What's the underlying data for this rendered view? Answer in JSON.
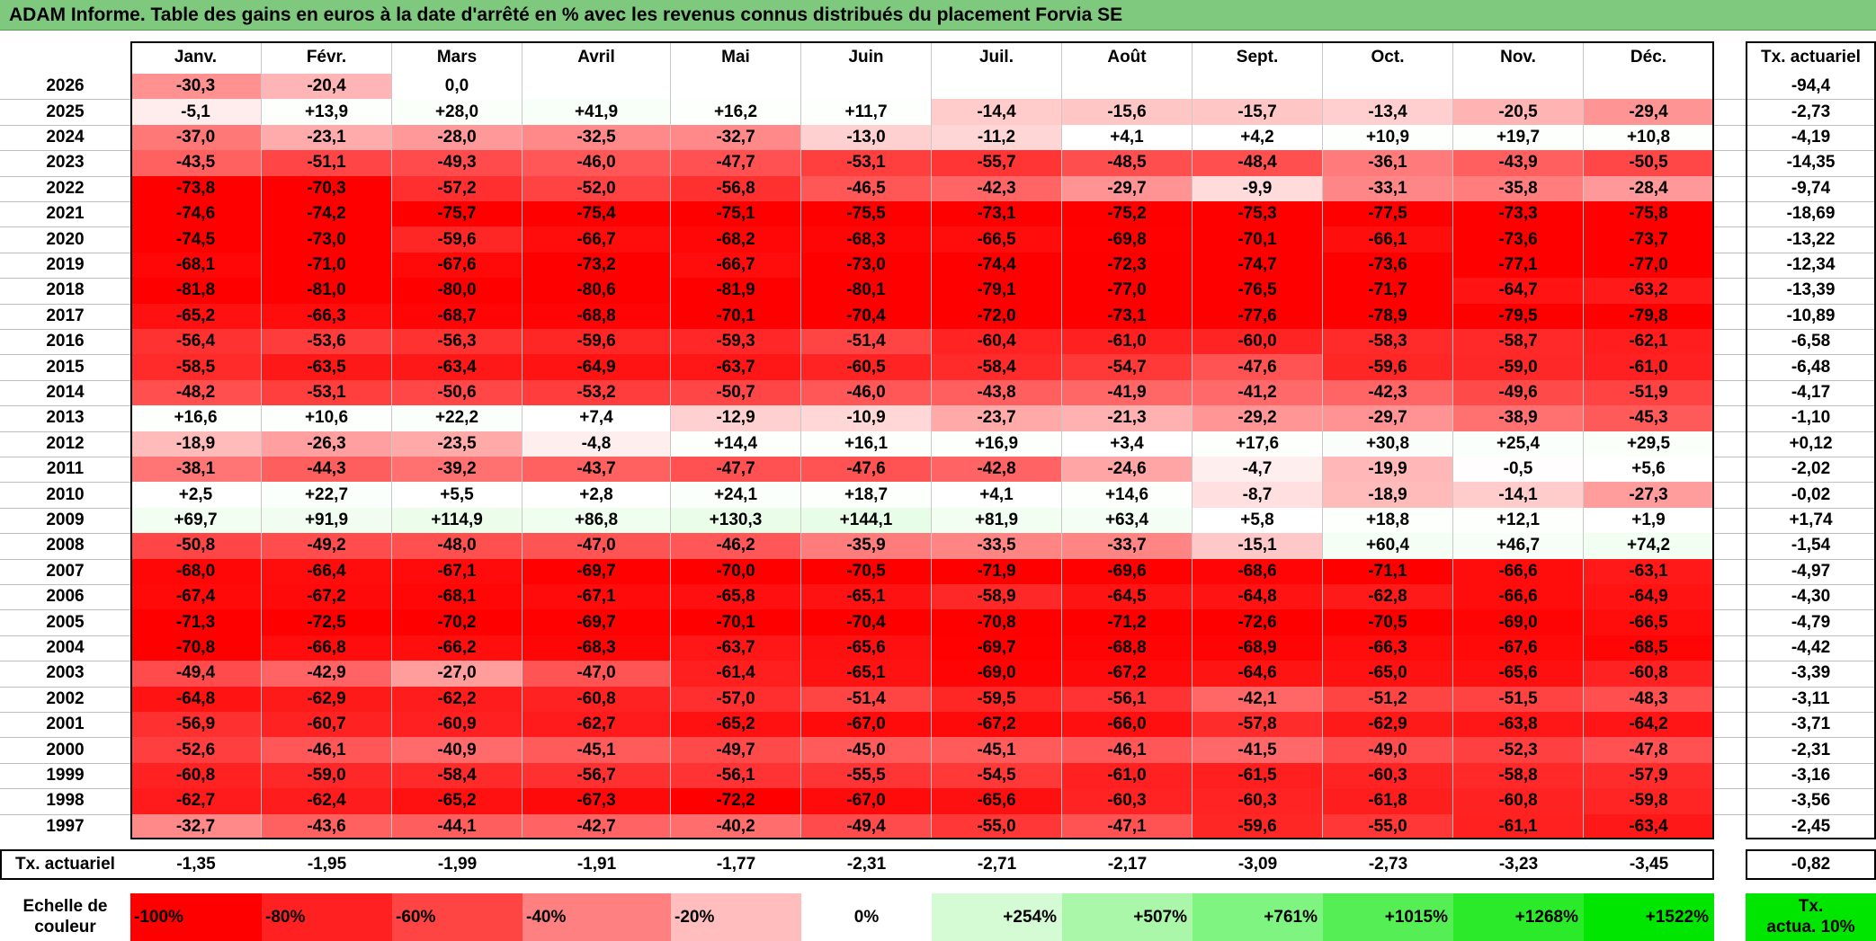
{
  "title": "ADAM Informe. Table des gains en euros à la date d'arrêté en % avec les revenus connus distribués du placement Forvia SE",
  "chart_data": {
    "type": "table",
    "columns": [
      "Janv.",
      "Févr.",
      "Mars",
      "Avril",
      "Mai",
      "Juin",
      "Juil.",
      "Août",
      "Sept.",
      "Oct.",
      "Nov.",
      "Déc."
    ],
    "rate_header": "Tx. actuariel",
    "rows": [
      {
        "year": "2026",
        "values": [
          "-30,3",
          "-20,4",
          "0,0",
          "",
          "",
          "",
          "",
          "",
          "",
          "",
          "",
          ""
        ],
        "rate": "-94,4"
      },
      {
        "year": "2025",
        "values": [
          "-5,1",
          "+13,9",
          "+28,0",
          "+41,9",
          "+16,2",
          "+11,7",
          "-14,4",
          "-15,6",
          "-15,7",
          "-13,4",
          "-20,5",
          "-29,4"
        ],
        "rate": "-2,73"
      },
      {
        "year": "2024",
        "values": [
          "-37,0",
          "-23,1",
          "-28,0",
          "-32,5",
          "-32,7",
          "-13,0",
          "-11,2",
          "+4,1",
          "+4,2",
          "+10,9",
          "+19,7",
          "+10,8"
        ],
        "rate": "-4,19"
      },
      {
        "year": "2023",
        "values": [
          "-43,5",
          "-51,1",
          "-49,3",
          "-46,0",
          "-47,7",
          "-53,1",
          "-55,7",
          "-48,5",
          "-48,4",
          "-36,1",
          "-43,9",
          "-50,5"
        ],
        "rate": "-14,35"
      },
      {
        "year": "2022",
        "values": [
          "-73,8",
          "-70,3",
          "-57,2",
          "-52,0",
          "-56,8",
          "-46,5",
          "-42,3",
          "-29,7",
          "-9,9",
          "-33,1",
          "-35,8",
          "-28,4"
        ],
        "rate": "-9,74"
      },
      {
        "year": "2021",
        "values": [
          "-74,6",
          "-74,2",
          "-75,7",
          "-75,4",
          "-75,1",
          "-75,5",
          "-73,1",
          "-75,2",
          "-75,3",
          "-77,5",
          "-73,3",
          "-75,8"
        ],
        "rate": "-18,69"
      },
      {
        "year": "2020",
        "values": [
          "-74,5",
          "-73,0",
          "-59,6",
          "-66,7",
          "-68,2",
          "-68,3",
          "-66,5",
          "-69,8",
          "-70,1",
          "-66,1",
          "-73,6",
          "-73,7"
        ],
        "rate": "-13,22"
      },
      {
        "year": "2019",
        "values": [
          "-68,1",
          "-71,0",
          "-67,6",
          "-73,2",
          "-66,7",
          "-73,0",
          "-74,4",
          "-72,3",
          "-74,7",
          "-73,6",
          "-77,1",
          "-77,0"
        ],
        "rate": "-12,34"
      },
      {
        "year": "2018",
        "values": [
          "-81,8",
          "-81,0",
          "-80,0",
          "-80,6",
          "-81,9",
          "-80,1",
          "-79,1",
          "-77,0",
          "-76,5",
          "-71,7",
          "-64,7",
          "-63,2"
        ],
        "rate": "-13,39"
      },
      {
        "year": "2017",
        "values": [
          "-65,2",
          "-66,3",
          "-68,7",
          "-68,8",
          "-70,1",
          "-70,4",
          "-72,0",
          "-73,1",
          "-77,6",
          "-78,9",
          "-79,5",
          "-79,8"
        ],
        "rate": "-10,89"
      },
      {
        "year": "2016",
        "values": [
          "-56,4",
          "-53,6",
          "-56,3",
          "-59,6",
          "-59,3",
          "-51,4",
          "-60,4",
          "-61,0",
          "-60,0",
          "-58,3",
          "-58,7",
          "-62,1"
        ],
        "rate": "-6,58"
      },
      {
        "year": "2015",
        "values": [
          "-58,5",
          "-63,5",
          "-63,4",
          "-64,9",
          "-63,7",
          "-60,5",
          "-58,4",
          "-54,7",
          "-47,6",
          "-59,6",
          "-59,0",
          "-61,0"
        ],
        "rate": "-6,48"
      },
      {
        "year": "2014",
        "values": [
          "-48,2",
          "-53,1",
          "-50,6",
          "-53,2",
          "-50,7",
          "-46,0",
          "-43,8",
          "-41,9",
          "-41,2",
          "-42,3",
          "-49,6",
          "-51,9"
        ],
        "rate": "-4,17"
      },
      {
        "year": "2013",
        "values": [
          "+16,6",
          "+10,6",
          "+22,2",
          "+7,4",
          "-12,9",
          "-10,9",
          "-23,7",
          "-21,3",
          "-29,2",
          "-29,7",
          "-38,9",
          "-45,3"
        ],
        "rate": "-1,10"
      },
      {
        "year": "2012",
        "values": [
          "-18,9",
          "-26,3",
          "-23,5",
          "-4,8",
          "+14,4",
          "+16,1",
          "+16,9",
          "+3,4",
          "+17,6",
          "+30,8",
          "+25,4",
          "+29,5"
        ],
        "rate": "+0,12"
      },
      {
        "year": "2011",
        "values": [
          "-38,1",
          "-44,3",
          "-39,2",
          "-43,7",
          "-47,7",
          "-47,6",
          "-42,8",
          "-24,6",
          "-4,7",
          "-19,9",
          "-0,5",
          "+5,6"
        ],
        "rate": "-2,02"
      },
      {
        "year": "2010",
        "values": [
          "+2,5",
          "+22,7",
          "+5,5",
          "+2,8",
          "+24,1",
          "+18,7",
          "+4,1",
          "+14,6",
          "-8,7",
          "-18,9",
          "-14,1",
          "-27,3"
        ],
        "rate": "-0,02"
      },
      {
        "year": "2009",
        "values": [
          "+69,7",
          "+91,9",
          "+114,9",
          "+86,8",
          "+130,3",
          "+144,1",
          "+81,9",
          "+63,4",
          "+5,8",
          "+18,8",
          "+12,1",
          "+1,9"
        ],
        "rate": "+1,74"
      },
      {
        "year": "2008",
        "values": [
          "-50,8",
          "-49,2",
          "-48,0",
          "-47,0",
          "-46,2",
          "-35,9",
          "-33,5",
          "-33,7",
          "-15,1",
          "+60,4",
          "+46,7",
          "+74,2"
        ],
        "rate": "-1,54"
      },
      {
        "year": "2007",
        "values": [
          "-68,0",
          "-66,4",
          "-67,1",
          "-69,7",
          "-70,0",
          "-70,5",
          "-71,9",
          "-69,6",
          "-68,6",
          "-71,1",
          "-66,6",
          "-63,1"
        ],
        "rate": "-4,97"
      },
      {
        "year": "2006",
        "values": [
          "-67,4",
          "-67,2",
          "-68,1",
          "-67,1",
          "-65,8",
          "-65,1",
          "-58,9",
          "-64,5",
          "-64,8",
          "-62,8",
          "-66,6",
          "-64,9"
        ],
        "rate": "-4,30"
      },
      {
        "year": "2005",
        "values": [
          "-71,3",
          "-72,5",
          "-70,2",
          "-69,7",
          "-70,1",
          "-70,4",
          "-70,8",
          "-71,2",
          "-72,6",
          "-70,5",
          "-69,0",
          "-66,5"
        ],
        "rate": "-4,79"
      },
      {
        "year": "2004",
        "values": [
          "-70,8",
          "-66,8",
          "-66,2",
          "-68,3",
          "-63,7",
          "-65,6",
          "-69,7",
          "-68,8",
          "-68,9",
          "-66,3",
          "-67,6",
          "-68,5"
        ],
        "rate": "-4,42"
      },
      {
        "year": "2003",
        "values": [
          "-49,4",
          "-42,9",
          "-27,0",
          "-47,0",
          "-61,4",
          "-65,1",
          "-69,0",
          "-67,2",
          "-64,6",
          "-65,0",
          "-65,6",
          "-60,8"
        ],
        "rate": "-3,39"
      },
      {
        "year": "2002",
        "values": [
          "-64,8",
          "-62,9",
          "-62,2",
          "-60,8",
          "-57,0",
          "-51,4",
          "-59,5",
          "-56,1",
          "-42,1",
          "-51,2",
          "-51,5",
          "-48,3"
        ],
        "rate": "-3,11"
      },
      {
        "year": "2001",
        "values": [
          "-56,9",
          "-60,7",
          "-60,9",
          "-62,7",
          "-65,2",
          "-67,0",
          "-67,2",
          "-66,0",
          "-57,8",
          "-62,9",
          "-63,8",
          "-64,2"
        ],
        "rate": "-3,71"
      },
      {
        "year": "2000",
        "values": [
          "-52,6",
          "-46,1",
          "-40,9",
          "-45,1",
          "-49,7",
          "-45,0",
          "-45,1",
          "-46,1",
          "-41,5",
          "-49,0",
          "-52,3",
          "-47,8"
        ],
        "rate": "-2,31"
      },
      {
        "year": "1999",
        "values": [
          "-60,8",
          "-59,0",
          "-58,4",
          "-56,7",
          "-56,1",
          "-55,5",
          "-54,5",
          "-61,0",
          "-61,5",
          "-60,3",
          "-58,8",
          "-57,9"
        ],
        "rate": "-3,16"
      },
      {
        "year": "1998",
        "values": [
          "-62,7",
          "-62,4",
          "-65,2",
          "-67,3",
          "-72,2",
          "-67,0",
          "-65,6",
          "-60,3",
          "-60,3",
          "-61,8",
          "-60,8",
          "-59,8"
        ],
        "rate": "-3,56"
      },
      {
        "year": "1997",
        "values": [
          "-32,7",
          "-43,6",
          "-44,1",
          "-42,7",
          "-40,2",
          "-49,4",
          "-55,0",
          "-47,1",
          "-59,6",
          "-55,0",
          "-61,1",
          "-63,4"
        ],
        "rate": "-2,45"
      }
    ],
    "footer": {
      "label": "Tx. actuariel",
      "values": [
        "-1,35",
        "-1,95",
        "-1,99",
        "-1,91",
        "-1,77",
        "-2,31",
        "-2,71",
        "-2,17",
        "-3,09",
        "-2,73",
        "-3,23",
        "-3,45"
      ],
      "rate": "-0,82"
    },
    "scale": {
      "label_line1": "Echelle de",
      "label_line2": "couleur",
      "items": [
        {
          "text": "-100%",
          "color": "#ff0000"
        },
        {
          "text": "-80%",
          "color": "#ff2121"
        },
        {
          "text": "-60%",
          "color": "#ff4444"
        },
        {
          "text": "-40%",
          "color": "#ff8080"
        },
        {
          "text": "-20%",
          "color": "#ffbdbd"
        },
        {
          "text": "0%",
          "color": "#ffffff"
        },
        {
          "text": "+254%",
          "color": "#d4fbd4"
        },
        {
          "text": "+507%",
          "color": "#aaf7aa"
        },
        {
          "text": "+761%",
          "color": "#80f480"
        },
        {
          "text": "+1015%",
          "color": "#55ef55"
        },
        {
          "text": "+1268%",
          "color": "#2aea2a"
        },
        {
          "text": "+1522%",
          "color": "#00e600"
        }
      ],
      "rate_label_line1": "Tx.",
      "rate_label_line2": "actua. 10%",
      "rate_color": "#00e600"
    }
  }
}
